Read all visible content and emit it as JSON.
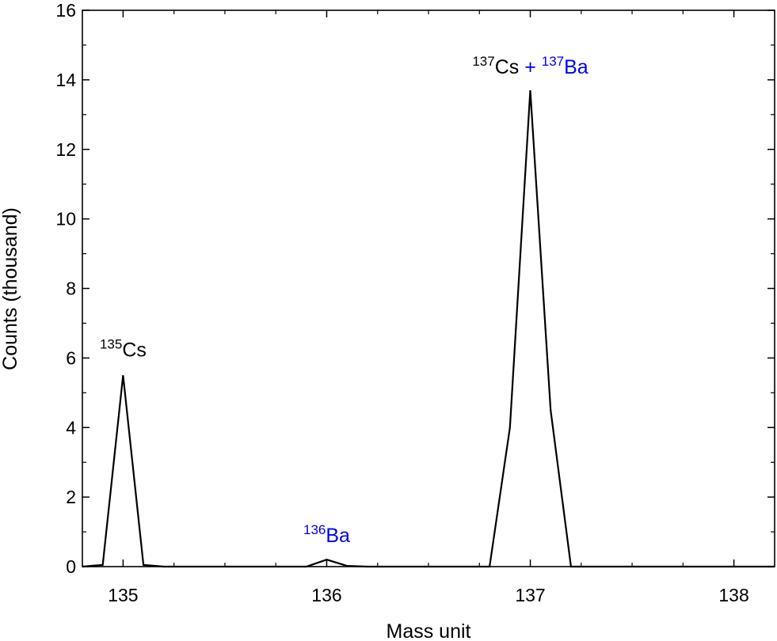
{
  "chart_data": {
    "type": "line",
    "xlabel": "Mass unit",
    "ylabel": "Counts (thousand)",
    "xlim": [
      134.8,
      138.2
    ],
    "ylim": [
      0,
      16
    ],
    "x_ticks": [
      135,
      136,
      137,
      138
    ],
    "y_ticks": [
      0,
      2,
      4,
      6,
      8,
      10,
      12,
      14,
      16
    ],
    "x_minor_step": 0.25,
    "y_minor_step": 1,
    "grid": false,
    "colors": {
      "line": "#000000",
      "barium": "#0000ee",
      "cesium": "#000000"
    },
    "series": [
      {
        "points": [
          [
            134.8,
            0
          ],
          [
            134.9,
            0.05
          ],
          [
            135.0,
            5.5
          ],
          [
            135.1,
            0.05
          ],
          [
            135.2,
            0
          ],
          [
            135.9,
            0
          ],
          [
            136.0,
            0.2
          ],
          [
            136.1,
            0.02
          ],
          [
            136.2,
            0
          ],
          [
            136.8,
            0
          ],
          [
            136.9,
            4.0
          ],
          [
            137.0,
            13.7
          ],
          [
            137.1,
            4.5
          ],
          [
            137.2,
            0
          ],
          [
            138.2,
            0
          ]
        ]
      }
    ],
    "annotations": [
      {
        "id": "cs135",
        "x": 135.0,
        "y": 5.5,
        "parts": [
          {
            "text": "135",
            "sup": true,
            "color": "#000000"
          },
          {
            "text": "Cs",
            "sup": false,
            "color": "#000000"
          }
        ]
      },
      {
        "id": "ba136",
        "x": 136.0,
        "y": 0.2,
        "parts": [
          {
            "text": "136",
            "sup": true,
            "color": "#0000ee"
          },
          {
            "text": "Ba",
            "sup": false,
            "color": "#0000ee"
          }
        ]
      },
      {
        "id": "cs137-ba137",
        "x": 137.0,
        "y": 13.7,
        "parts": [
          {
            "text": "137",
            "sup": true,
            "color": "#000000"
          },
          {
            "text": "Cs",
            "sup": false,
            "color": "#000000"
          },
          {
            "text": " + ",
            "sup": false,
            "color": "#0000ee"
          },
          {
            "text": "137",
            "sup": true,
            "color": "#0000ee"
          },
          {
            "text": "Ba",
            "sup": false,
            "color": "#0000ee"
          }
        ]
      }
    ]
  }
}
